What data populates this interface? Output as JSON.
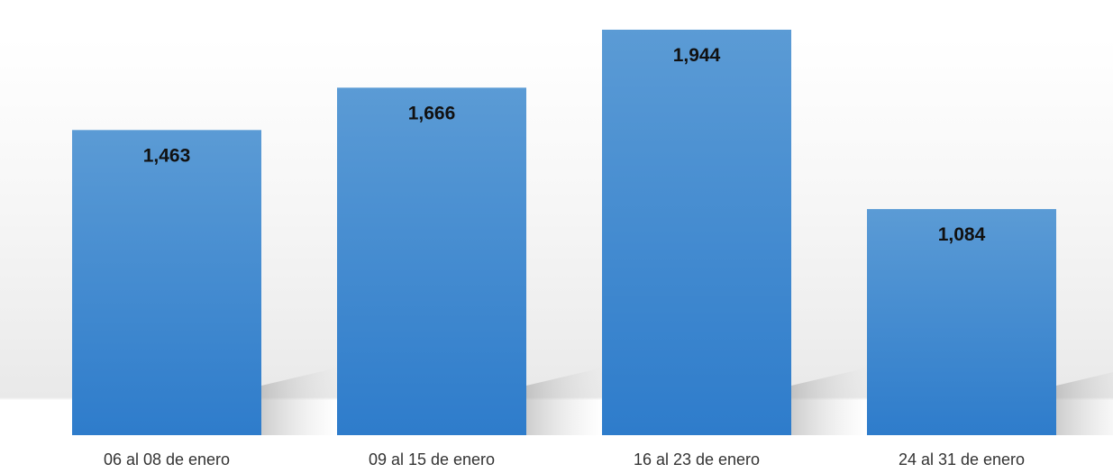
{
  "chart_data": {
    "type": "bar",
    "categories": [
      "06 al 08 de enero",
      "09 al 15 de enero",
      "16 al 23 de enero",
      "24 al 31 de enero"
    ],
    "values": [
      1463,
      1666,
      1944,
      1084
    ],
    "value_labels": [
      "1,463",
      "1,666",
      "1,944",
      "1,084"
    ],
    "title": "",
    "xlabel": "",
    "ylabel": "",
    "ylim": [
      0,
      2000
    ],
    "grid": false,
    "legend": "none",
    "colors": {
      "bar_top": "#5b9bd5",
      "bar_bottom": "#2e7ccb",
      "label": "#111111",
      "axis_text": "#333333"
    }
  }
}
